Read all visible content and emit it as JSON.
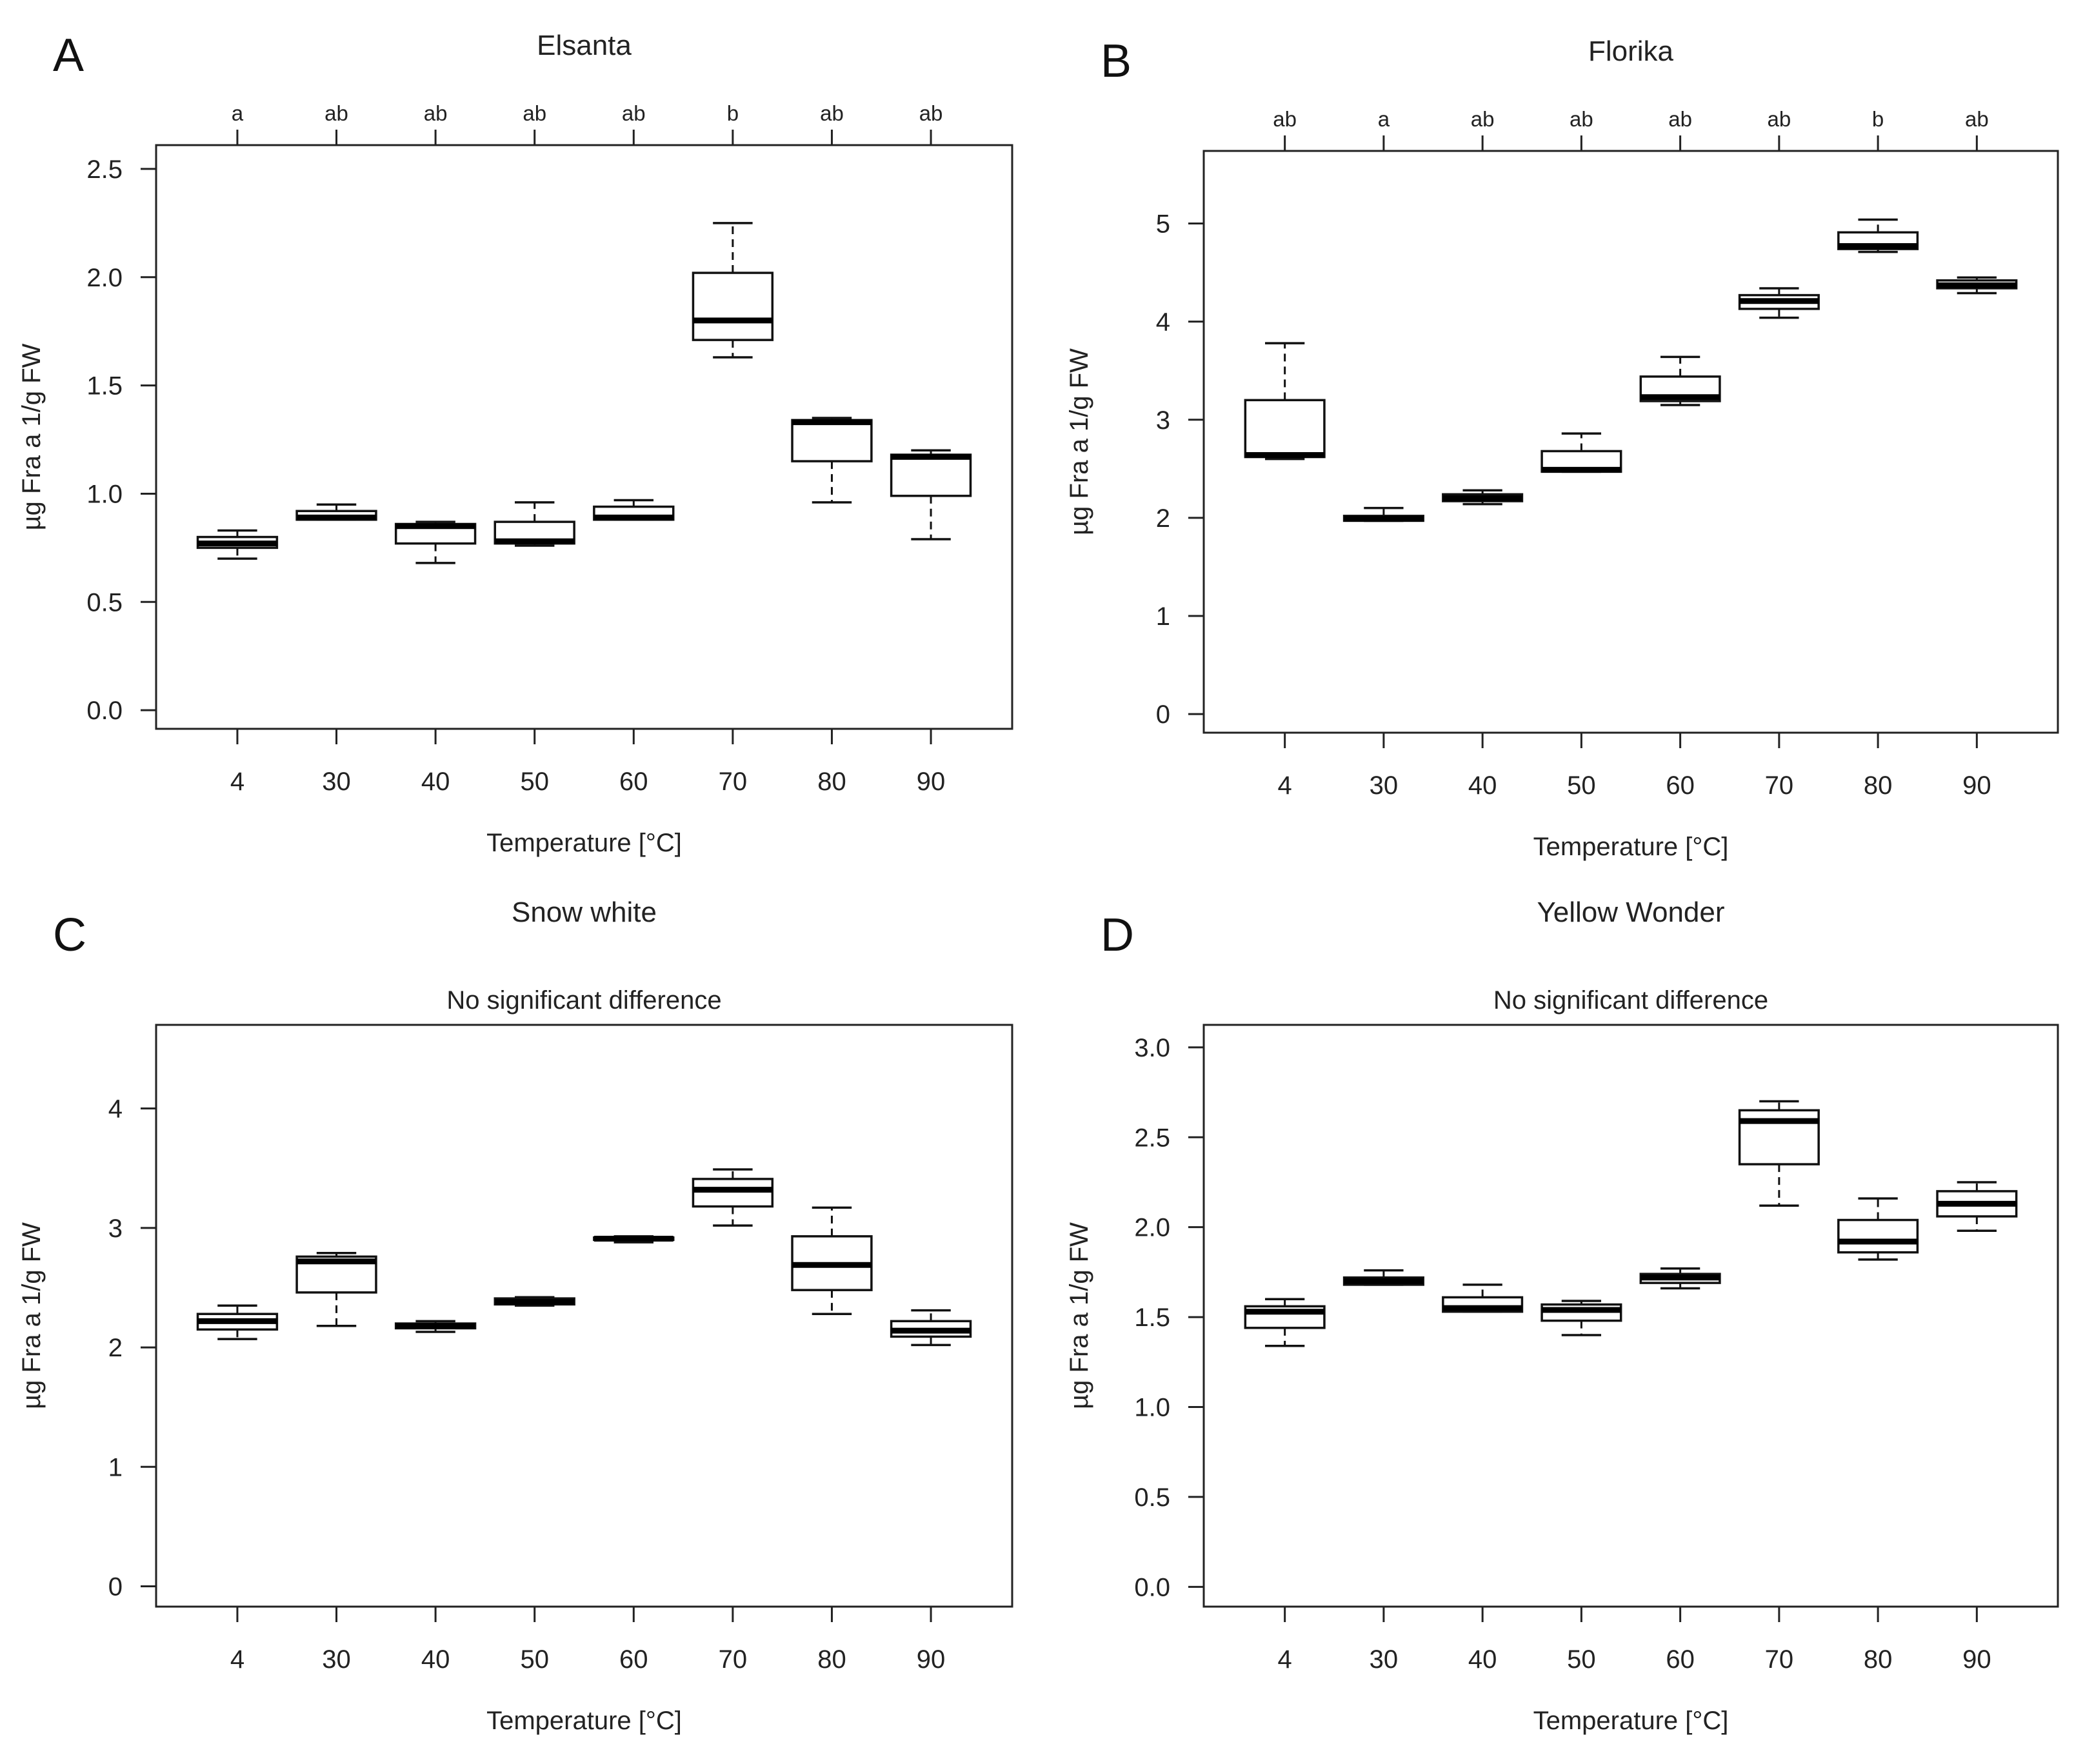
{
  "chart_data": [
    {
      "type": "box",
      "panel_label": "A",
      "title": "Elsanta",
      "subtitle": "",
      "xlabel": "Temperature [°C]",
      "ylabel": "µg Fra a 1/g FW",
      "categories": [
        "4",
        "30",
        "40",
        "50",
        "60",
        "70",
        "80",
        "90"
      ],
      "group_letters": [
        "a",
        "ab",
        "ab",
        "ab",
        "ab",
        "b",
        "ab",
        "ab"
      ],
      "ylim": [
        -0.086,
        2.61
      ],
      "yticks": [
        "0.0",
        "0.5",
        "1.0",
        "1.5",
        "2.0",
        "2.5"
      ],
      "boxes": [
        {
          "min": 0.7,
          "q1": 0.75,
          "median": 0.77,
          "q3": 0.8,
          "max": 0.83
        },
        {
          "min": 0.88,
          "q1": 0.88,
          "median": 0.89,
          "q3": 0.92,
          "max": 0.95
        },
        {
          "min": 0.68,
          "q1": 0.77,
          "median": 0.85,
          "q3": 0.86,
          "max": 0.87
        },
        {
          "min": 0.76,
          "q1": 0.77,
          "median": 0.78,
          "q3": 0.87,
          "max": 0.96
        },
        {
          "min": 0.88,
          "q1": 0.88,
          "median": 0.89,
          "q3": 0.94,
          "max": 0.97
        },
        {
          "min": 1.63,
          "q1": 1.71,
          "median": 1.8,
          "q3": 2.02,
          "max": 2.25
        },
        {
          "min": 0.96,
          "q1": 1.15,
          "median": 1.33,
          "q3": 1.34,
          "max": 1.35
        },
        {
          "min": 0.79,
          "q1": 0.99,
          "median": 1.17,
          "q3": 1.18,
          "max": 1.2
        }
      ]
    },
    {
      "type": "box",
      "panel_label": "B",
      "title": "Florika",
      "subtitle": "",
      "xlabel": "Temperature [°C]",
      "ylabel": "µg Fra a 1/g FW",
      "categories": [
        "4",
        "30",
        "40",
        "50",
        "60",
        "70",
        "80",
        "90"
      ],
      "group_letters": [
        "ab",
        "a",
        "ab",
        "ab",
        "ab",
        "ab",
        "b",
        "ab"
      ],
      "ylim": [
        -0.19,
        5.74
      ],
      "yticks": [
        "0",
        "1",
        "2",
        "3",
        "4",
        "5"
      ],
      "boxes": [
        {
          "min": 2.6,
          "q1": 2.62,
          "median": 2.64,
          "q3": 3.2,
          "max": 3.78
        },
        {
          "min": 1.97,
          "q1": 1.97,
          "median": 1.99,
          "q3": 2.02,
          "max": 2.1
        },
        {
          "min": 2.14,
          "q1": 2.17,
          "median": 2.2,
          "q3": 2.24,
          "max": 2.28
        },
        {
          "min": 2.47,
          "q1": 2.47,
          "median": 2.49,
          "q3": 2.68,
          "max": 2.86
        },
        {
          "min": 3.15,
          "q1": 3.19,
          "median": 3.23,
          "q3": 3.44,
          "max": 3.64
        },
        {
          "min": 4.04,
          "q1": 4.13,
          "median": 4.21,
          "q3": 4.27,
          "max": 4.34
        },
        {
          "min": 4.71,
          "q1": 4.74,
          "median": 4.77,
          "q3": 4.91,
          "max": 5.04
        },
        {
          "min": 4.29,
          "q1": 4.34,
          "median": 4.37,
          "q3": 4.42,
          "max": 4.45
        }
      ]
    },
    {
      "type": "box",
      "panel_label": "C",
      "title": "Snow white",
      "subtitle": "No significant difference",
      "xlabel": "Temperature [°C]",
      "ylabel": "µg Fra a 1/g FW",
      "categories": [
        "4",
        "30",
        "40",
        "50",
        "60",
        "70",
        "80",
        "90"
      ],
      "group_letters": [],
      "ylim": [
        -0.17,
        4.7
      ],
      "yticks": [
        "0",
        "1",
        "2",
        "3",
        "4"
      ],
      "boxes": [
        {
          "min": 2.07,
          "q1": 2.15,
          "median": 2.22,
          "q3": 2.28,
          "max": 2.35
        },
        {
          "min": 2.18,
          "q1": 2.46,
          "median": 2.72,
          "q3": 2.76,
          "max": 2.79
        },
        {
          "min": 2.13,
          "q1": 2.16,
          "median": 2.18,
          "q3": 2.2,
          "max": 2.22
        },
        {
          "min": 2.35,
          "q1": 2.36,
          "median": 2.38,
          "q3": 2.41,
          "max": 2.42
        },
        {
          "min": 2.88,
          "q1": 2.9,
          "median": 2.91,
          "q3": 2.92,
          "max": 2.93
        },
        {
          "min": 3.02,
          "q1": 3.18,
          "median": 3.32,
          "q3": 3.41,
          "max": 3.49
        },
        {
          "min": 2.28,
          "q1": 2.48,
          "median": 2.69,
          "q3": 2.93,
          "max": 3.17
        },
        {
          "min": 2.02,
          "q1": 2.09,
          "median": 2.14,
          "q3": 2.22,
          "max": 2.31
        }
      ]
    },
    {
      "type": "box",
      "panel_label": "D",
      "title": "Yellow Wonder",
      "subtitle": "No significant difference",
      "xlabel": "Temperature [°C]",
      "ylabel": "µg Fra a 1/g FW",
      "categories": [
        "4",
        "30",
        "40",
        "50",
        "60",
        "70",
        "80",
        "90"
      ],
      "group_letters": [],
      "ylim": [
        -0.11,
        3.125
      ],
      "yticks": [
        "0.0",
        "0.5",
        "1.0",
        "1.5",
        "2.0",
        "2.5",
        "3.0"
      ],
      "boxes": [
        {
          "min": 1.34,
          "q1": 1.44,
          "median": 1.53,
          "q3": 1.56,
          "max": 1.6
        },
        {
          "min": 1.68,
          "q1": 1.68,
          "median": 1.7,
          "q3": 1.72,
          "max": 1.76
        },
        {
          "min": 1.53,
          "q1": 1.53,
          "median": 1.55,
          "q3": 1.61,
          "max": 1.68
        },
        {
          "min": 1.4,
          "q1": 1.48,
          "median": 1.54,
          "q3": 1.57,
          "max": 1.59
        },
        {
          "min": 1.66,
          "q1": 1.69,
          "median": 1.72,
          "q3": 1.74,
          "max": 1.77
        },
        {
          "min": 2.12,
          "q1": 2.35,
          "median": 2.59,
          "q3": 2.65,
          "max": 2.7
        },
        {
          "min": 1.82,
          "q1": 1.86,
          "median": 1.92,
          "q3": 2.04,
          "max": 2.16
        },
        {
          "min": 1.98,
          "q1": 2.06,
          "median": 2.13,
          "q3": 2.2,
          "max": 2.25
        }
      ]
    }
  ]
}
